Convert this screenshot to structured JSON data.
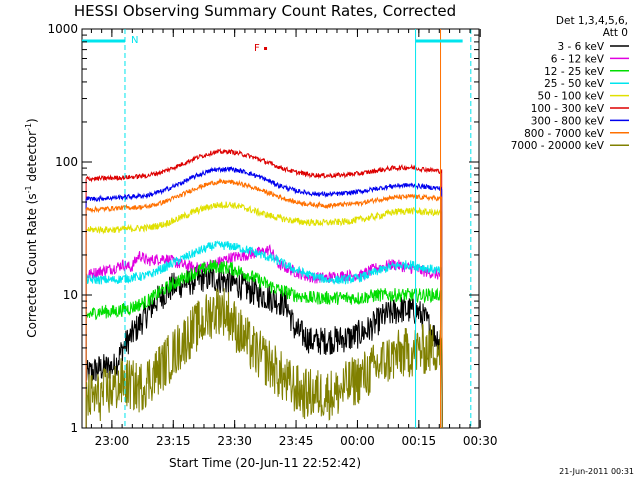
{
  "chart_data": {
    "type": "line",
    "title": "HESSI Observing Summary Count Rates, Corrected",
    "xlabel": "Start Time (20-Jun-11 22:52:42)",
    "ylabel_main": "Corrected Count Rate (s",
    "ylabel_sup1": "-1",
    "ylabel_mid": " detector",
    "ylabel_sup2": "-1",
    "ylabel_end": ")",
    "y_scale": "log",
    "ylim": [
      1,
      1000
    ],
    "x_unit": "minutes since 22:52:42",
    "xlim": [
      0,
      97
    ],
    "x_ticks": [
      {
        "label": "23:00",
        "value": 7.3
      },
      {
        "label": "23:15",
        "value": 22.3
      },
      {
        "label": "23:30",
        "value": 37.3
      },
      {
        "label": "23:45",
        "value": 52.3
      },
      {
        "label": "00:00",
        "value": 67.3
      },
      {
        "label": "00:15",
        "value": 82.3
      },
      {
        "label": "00:30",
        "value": 97.3
      }
    ],
    "y_ticks": [
      {
        "label": "1",
        "value": 1
      },
      {
        "label": "10",
        "value": 10
      },
      {
        "label": "100",
        "value": 100
      },
      {
        "label": "1000",
        "value": 1000
      }
    ],
    "legend_header": [
      "Det 1,3,4,5,6,",
      "Att 0"
    ],
    "legend_position": "right",
    "series": [
      {
        "name": "3 - 6 keV",
        "color": "#000000",
        "x": [
          1,
          4,
          8,
          10,
          14,
          18,
          22,
          26,
          30,
          34,
          38,
          42,
          46,
          50,
          52,
          54,
          56,
          58,
          62,
          66,
          70,
          74,
          78,
          82,
          84,
          86,
          88
        ],
        "y": [
          2.5,
          2.8,
          2.9,
          4.0,
          6.0,
          9.0,
          11.5,
          12.5,
          13.5,
          13.0,
          12.0,
          10.5,
          9.5,
          8.5,
          5.5,
          5.0,
          4.5,
          4.5,
          4.6,
          4.8,
          5.5,
          7.0,
          7.8,
          7.5,
          6.5,
          5.0,
          4.5
        ]
      },
      {
        "name": "6 - 12 keV",
        "color": "#e000e0",
        "x": [
          1,
          4,
          8,
          10,
          12,
          14,
          16,
          20,
          24,
          28,
          32,
          36,
          40,
          44,
          46,
          48,
          52,
          56,
          60,
          64,
          68,
          72,
          76,
          80,
          84,
          88
        ],
        "y": [
          14,
          15,
          16,
          17,
          16,
          20,
          18,
          19,
          17,
          16,
          17,
          19,
          20,
          21,
          22,
          17,
          15,
          13.5,
          13.5,
          14,
          14,
          16,
          17,
          16,
          15,
          14
        ]
      },
      {
        "name": "12 - 25 keV",
        "color": "#00dd00",
        "x": [
          1,
          4,
          8,
          12,
          16,
          20,
          24,
          28,
          32,
          36,
          40,
          44,
          48,
          52,
          56,
          60,
          64,
          68,
          72,
          76,
          80,
          84,
          88
        ],
        "y": [
          7,
          7.5,
          7.5,
          8,
          9,
          11,
          13,
          15,
          16.5,
          16,
          14.5,
          12.5,
          11,
          10,
          9.5,
          9.5,
          9.5,
          9.5,
          10,
          10,
          10,
          10,
          10
        ]
      },
      {
        "name": "25 - 50 keV",
        "color": "#00e5ee",
        "x": [
          1,
          4,
          8,
          12,
          16,
          20,
          24,
          28,
          32,
          36,
          40,
          44,
          48,
          52,
          56,
          60,
          64,
          68,
          72,
          76,
          80,
          84,
          88
        ],
        "y": [
          13,
          13,
          13,
          13.5,
          14,
          16,
          18.5,
          21,
          23.5,
          23.5,
          22,
          20,
          18,
          15.5,
          14,
          13,
          13,
          13.5,
          15,
          16.5,
          17,
          16,
          15
        ]
      },
      {
        "name": "50 - 100 keV",
        "color": "#e0e000",
        "x": [
          1,
          4,
          8,
          12,
          16,
          20,
          24,
          28,
          32,
          36,
          40,
          44,
          48,
          52,
          56,
          60,
          64,
          68,
          72,
          76,
          80,
          84,
          88
        ],
        "y": [
          31,
          31,
          31,
          31.5,
          32,
          34,
          38,
          43,
          47,
          48,
          45,
          41,
          38,
          36,
          35,
          35,
          35.5,
          37,
          39,
          42,
          43,
          42,
          41
        ]
      },
      {
        "name": "100 - 300 keV",
        "color": "#dd0000",
        "x": [
          1,
          4,
          8,
          12,
          16,
          20,
          24,
          28,
          32,
          36,
          40,
          44,
          48,
          52,
          56,
          60,
          64,
          68,
          72,
          76,
          80,
          84,
          88
        ],
        "y": [
          75,
          75,
          76,
          77,
          79,
          85,
          95,
          108,
          118,
          120,
          113,
          103,
          92,
          84,
          80,
          79,
          80,
          82,
          86,
          90,
          91,
          88,
          85
        ]
      },
      {
        "name": "300 - 800 keV",
        "color": "#0000ee",
        "x": [
          1,
          4,
          8,
          12,
          16,
          20,
          24,
          28,
          32,
          36,
          40,
          44,
          48,
          52,
          56,
          60,
          64,
          68,
          72,
          76,
          80,
          84,
          88
        ],
        "y": [
          53,
          53,
          54,
          55,
          56,
          61,
          69,
          79,
          87,
          89,
          84,
          76,
          67,
          61,
          58,
          57,
          58,
          60,
          63,
          66,
          67,
          65,
          63
        ]
      },
      {
        "name": "800 - 7000 keV",
        "color": "#ff7000",
        "x": [
          1,
          4,
          8,
          12,
          16,
          20,
          24,
          28,
          32,
          36,
          40,
          44,
          48,
          52,
          56,
          60,
          64,
          68,
          72,
          76,
          80,
          84,
          88
        ],
        "y": [
          44,
          44,
          45,
          45.5,
          46,
          50,
          56,
          64,
          70,
          71,
          67,
          61,
          55,
          50,
          48,
          47,
          48,
          49,
          52,
          54,
          55,
          54,
          53
        ]
      },
      {
        "name": "7000 - 20000 keV",
        "color": "#808000",
        "x": [
          1,
          4,
          8,
          10,
          14,
          18,
          22,
          26,
          30,
          32,
          34,
          36,
          38,
          42,
          46,
          50,
          54,
          58,
          62,
          66,
          70,
          74,
          78,
          82,
          86,
          88
        ],
        "y": [
          1.7,
          1.7,
          2.0,
          2.2,
          2.0,
          2.6,
          3.5,
          5.0,
          6.5,
          7.5,
          8.0,
          7.0,
          5.5,
          3.8,
          3.0,
          2.2,
          1.8,
          1.8,
          1.8,
          2.2,
          2.6,
          3.2,
          3.6,
          3.8,
          4.0,
          4.0
        ]
      }
    ],
    "annotations": [
      {
        "text": "N",
        "x": 10.5,
        "y": 900,
        "color": "#00e5ee"
      },
      {
        "text": "F",
        "x": 43.5,
        "y": 700,
        "color": "#dd0000"
      }
    ],
    "vlines": [
      {
        "x": 10.5,
        "style": "dashed",
        "color": "#00e5ee"
      },
      {
        "x": 81.5,
        "style": "solid",
        "color": "#00e5ee"
      },
      {
        "x": 87.6,
        "style": "solid",
        "color": "#ff7000"
      },
      {
        "x": 95,
        "style": "dashed",
        "color": "#00e5ee"
      }
    ],
    "grid": false
  },
  "footer": {
    "timestamp": "21-Jun-2011 00:31"
  }
}
